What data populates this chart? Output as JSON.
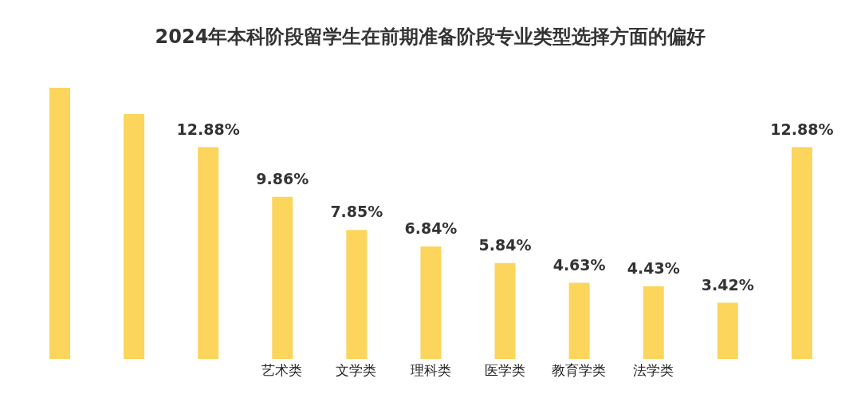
{
  "chart_data": {
    "type": "bar",
    "title": "2024年本科阶段留学生在前期准备阶段专业类型选择方面的偏好",
    "categories": [
      null,
      null,
      null,
      "艺术类",
      "文学类",
      "理科类",
      "医学类",
      "教育学类",
      "法学类",
      null,
      null
    ],
    "values": [
      16.5,
      14.9,
      12.88,
      9.86,
      7.85,
      6.84,
      5.84,
      4.63,
      4.43,
      3.42,
      12.88
    ],
    "value_labels": [
      null,
      null,
      "12.88%",
      "9.86%",
      "7.85%",
      "6.84%",
      "5.84%",
      "4.63%",
      "4.43%",
      "3.42%",
      "12.88%"
    ],
    "color": "#fbd55c",
    "grid": false,
    "legend": false
  }
}
